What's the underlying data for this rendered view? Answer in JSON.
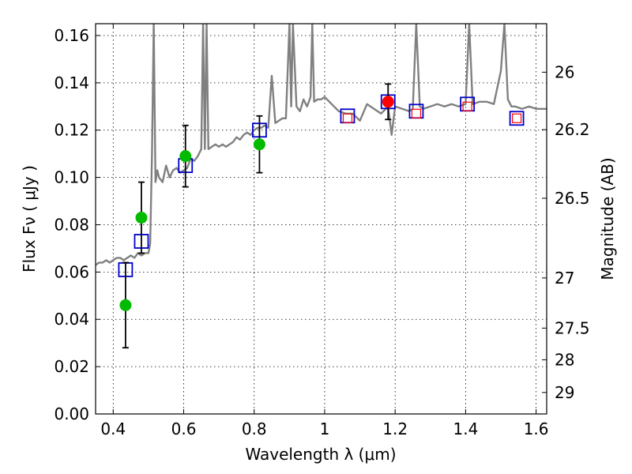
{
  "chart_data": {
    "type": "scatter",
    "title": "",
    "xlabel": "Wavelength  λ (μm)",
    "ylabel_left": "Flux  Fν  ( μJy )",
    "ylabel_right": "Magnitude (AB)",
    "xlim": [
      0.35,
      1.63
    ],
    "ylim": [
      0.0,
      0.165
    ],
    "grid": true,
    "x_ticks": [
      0.4,
      0.6,
      0.8,
      1.0,
      1.2,
      1.4,
      1.6
    ],
    "x_tick_labels": [
      "0.4",
      "0.6",
      "0.8",
      "1",
      "1.2",
      "1.4",
      "1.6"
    ],
    "y_ticks": [
      0.0,
      0.02,
      0.04,
      0.06,
      0.08,
      0.1,
      0.12,
      0.14,
      0.16
    ],
    "y_tick_labels": [
      "0.00",
      "0.02",
      "0.04",
      "0.06",
      "0.08",
      "0.10",
      "0.12",
      "0.14",
      "0.16"
    ],
    "mag_ticks": [
      {
        "label": "26",
        "flux": 0.1445
      },
      {
        "label": "26.2",
        "flux": 0.1202
      },
      {
        "label": "26.5",
        "flux": 0.0912
      },
      {
        "label": "27",
        "flux": 0.0575
      },
      {
        "label": "27.5",
        "flux": 0.0363
      },
      {
        "label": "28",
        "flux": 0.0229
      },
      {
        "label": "29",
        "flux": 0.0091
      }
    ],
    "colors": {
      "model": "#808080",
      "model_photometry": "#0000cc",
      "green_points": "#00bb00",
      "red_point": "#ff0000",
      "red_squares": "#ff0000",
      "error_bars": "#000000"
    },
    "series": [
      {
        "name": "model spectrum",
        "kind": "line",
        "x": [
          0.35,
          0.36,
          0.37,
          0.38,
          0.39,
          0.4,
          0.41,
          0.42,
          0.43,
          0.44,
          0.45,
          0.46,
          0.47,
          0.48,
          0.49,
          0.5,
          0.505,
          0.51,
          0.515,
          0.52,
          0.525,
          0.53,
          0.54,
          0.55,
          0.56,
          0.57,
          0.58,
          0.59,
          0.6,
          0.61,
          0.62,
          0.63,
          0.64,
          0.65,
          0.655,
          0.66,
          0.665,
          0.67,
          0.68,
          0.69,
          0.7,
          0.71,
          0.72,
          0.73,
          0.74,
          0.75,
          0.76,
          0.77,
          0.78,
          0.79,
          0.8,
          0.81,
          0.82,
          0.83,
          0.84,
          0.85,
          0.86,
          0.87,
          0.88,
          0.89,
          0.9,
          0.905,
          0.91,
          0.92,
          0.93,
          0.94,
          0.95,
          0.96,
          0.965,
          0.97,
          0.98,
          0.99,
          1.0,
          1.02,
          1.04,
          1.06,
          1.08,
          1.1,
          1.12,
          1.14,
          1.16,
          1.18,
          1.19,
          1.2,
          1.22,
          1.24,
          1.25,
          1.26,
          1.27,
          1.28,
          1.3,
          1.32,
          1.34,
          1.36,
          1.38,
          1.4,
          1.41,
          1.42,
          1.44,
          1.46,
          1.48,
          1.5,
          1.51,
          1.52,
          1.53,
          1.54,
          1.56,
          1.58,
          1.6,
          1.63
        ],
        "y": [
          0.063,
          0.064,
          0.064,
          0.065,
          0.064,
          0.065,
          0.066,
          0.066,
          0.065,
          0.066,
          0.067,
          0.066,
          0.068,
          0.067,
          0.068,
          0.068,
          0.072,
          0.11,
          0.165,
          0.098,
          0.103,
          0.1,
          0.098,
          0.105,
          0.1,
          0.103,
          0.104,
          0.102,
          0.103,
          0.104,
          0.108,
          0.107,
          0.109,
          0.112,
          0.165,
          0.112,
          0.165,
          0.112,
          0.113,
          0.114,
          0.113,
          0.114,
          0.113,
          0.114,
          0.115,
          0.117,
          0.116,
          0.118,
          0.119,
          0.118,
          0.12,
          0.121,
          0.121,
          0.122,
          0.121,
          0.143,
          0.123,
          0.124,
          0.125,
          0.125,
          0.165,
          0.13,
          0.165,
          0.13,
          0.128,
          0.133,
          0.13,
          0.134,
          0.165,
          0.132,
          0.133,
          0.133,
          0.134,
          0.131,
          0.128,
          0.127,
          0.127,
          0.124,
          0.131,
          0.129,
          0.127,
          0.13,
          0.118,
          0.13,
          0.129,
          0.128,
          0.129,
          0.165,
          0.13,
          0.129,
          0.13,
          0.131,
          0.13,
          0.131,
          0.13,
          0.131,
          0.165,
          0.131,
          0.132,
          0.132,
          0.131,
          0.145,
          0.165,
          0.133,
          0.13,
          0.13,
          0.129,
          0.13,
          0.129,
          0.129
        ]
      },
      {
        "name": "model photometry",
        "kind": "open-square",
        "points": [
          {
            "x": 0.435,
            "y": 0.061
          },
          {
            "x": 0.48,
            "y": 0.073
          },
          {
            "x": 0.605,
            "y": 0.105
          },
          {
            "x": 0.815,
            "y": 0.12
          },
          {
            "x": 1.065,
            "y": 0.126
          },
          {
            "x": 1.18,
            "y": 0.132
          },
          {
            "x": 1.26,
            "y": 0.128
          },
          {
            "x": 1.405,
            "y": 0.131
          },
          {
            "x": 1.545,
            "y": 0.125
          }
        ]
      },
      {
        "name": "observed (green)",
        "kind": "circle",
        "points": [
          {
            "x": 0.435,
            "y": 0.046,
            "yerr": 0.018
          },
          {
            "x": 0.48,
            "y": 0.083,
            "yerr": 0.015
          },
          {
            "x": 0.605,
            "y": 0.109,
            "yerr": 0.013
          },
          {
            "x": 0.815,
            "y": 0.114,
            "yerr": 0.012
          }
        ]
      },
      {
        "name": "observed (red)",
        "kind": "circle",
        "points": [
          {
            "x": 1.18,
            "y": 0.132,
            "yerr": 0.0075
          }
        ]
      },
      {
        "name": "model photometry (red)",
        "kind": "small-open-square",
        "points": [
          {
            "x": 1.065,
            "y": 0.125
          },
          {
            "x": 1.26,
            "y": 0.127
          },
          {
            "x": 1.405,
            "y": 0.13
          },
          {
            "x": 1.545,
            "y": 0.125
          }
        ]
      }
    ]
  }
}
